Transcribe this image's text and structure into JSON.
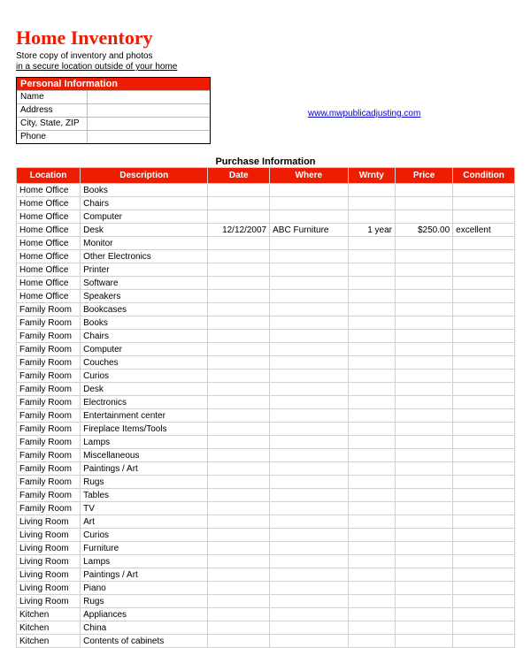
{
  "title": "Home Inventory",
  "subtitle_line1": "Store copy of inventory and photos",
  "subtitle_line2": "in a secure location outside of your home",
  "personal_info": {
    "header": "Personal Information",
    "fields": [
      {
        "label": "Name",
        "value": ""
      },
      {
        "label": "Address",
        "value": ""
      },
      {
        "label": "City, State, ZIP",
        "value": ""
      },
      {
        "label": "Phone",
        "value": ""
      }
    ]
  },
  "link_text": "www.mwpublicadjusting.com",
  "table_title": "Purchase Information",
  "columns": [
    "Location",
    "Description",
    "Date",
    "Where",
    "Wrnty",
    "Price",
    "Condition"
  ],
  "column_classes": [
    "col-location",
    "col-desc",
    "col-date",
    "col-where",
    "col-wrnty",
    "col-price",
    "col-cond"
  ],
  "rows": [
    [
      "Home Office",
      "Books",
      "",
      "",
      "",
      "",
      ""
    ],
    [
      "Home Office",
      "Chairs",
      "",
      "",
      "",
      "",
      ""
    ],
    [
      "Home Office",
      "Computer",
      "",
      "",
      "",
      "",
      ""
    ],
    [
      "Home Office",
      "Desk",
      "12/12/2007",
      "ABC Furniture",
      "1 year",
      "$250.00",
      "excellent"
    ],
    [
      "Home Office",
      "Monitor",
      "",
      "",
      "",
      "",
      ""
    ],
    [
      "Home Office",
      "Other Electronics",
      "",
      "",
      "",
      "",
      ""
    ],
    [
      "Home Office",
      "Printer",
      "",
      "",
      "",
      "",
      ""
    ],
    [
      "Home Office",
      "Software",
      "",
      "",
      "",
      "",
      ""
    ],
    [
      "Home Office",
      "Speakers",
      "",
      "",
      "",
      "",
      ""
    ],
    [
      "Family Room",
      "Bookcases",
      "",
      "",
      "",
      "",
      ""
    ],
    [
      "Family Room",
      "Books",
      "",
      "",
      "",
      "",
      ""
    ],
    [
      "Family Room",
      "Chairs",
      "",
      "",
      "",
      "",
      ""
    ],
    [
      "Family Room",
      "Computer",
      "",
      "",
      "",
      "",
      ""
    ],
    [
      "Family Room",
      "Couches",
      "",
      "",
      "",
      "",
      ""
    ],
    [
      "Family Room",
      "Curios",
      "",
      "",
      "",
      "",
      ""
    ],
    [
      "Family Room",
      "Desk",
      "",
      "",
      "",
      "",
      ""
    ],
    [
      "Family Room",
      "Electronics",
      "",
      "",
      "",
      "",
      ""
    ],
    [
      "Family Room",
      "Entertainment center",
      "",
      "",
      "",
      "",
      ""
    ],
    [
      "Family Room",
      "Fireplace Items/Tools",
      "",
      "",
      "",
      "",
      ""
    ],
    [
      "Family Room",
      "Lamps",
      "",
      "",
      "",
      "",
      ""
    ],
    [
      "Family Room",
      "Miscellaneous",
      "",
      "",
      "",
      "",
      ""
    ],
    [
      "Family Room",
      "Paintings / Art",
      "",
      "",
      "",
      "",
      ""
    ],
    [
      "Family Room",
      "Rugs",
      "",
      "",
      "",
      "",
      ""
    ],
    [
      "Family Room",
      "Tables",
      "",
      "",
      "",
      "",
      ""
    ],
    [
      "Family Room",
      "TV",
      "",
      "",
      "",
      "",
      ""
    ],
    [
      "Living Room",
      "Art",
      "",
      "",
      "",
      "",
      ""
    ],
    [
      "Living Room",
      "Curios",
      "",
      "",
      "",
      "",
      ""
    ],
    [
      "Living Room",
      "Furniture",
      "",
      "",
      "",
      "",
      ""
    ],
    [
      "Living Room",
      "Lamps",
      "",
      "",
      "",
      "",
      ""
    ],
    [
      "Living Room",
      "Paintings / Art",
      "",
      "",
      "",
      "",
      ""
    ],
    [
      "Living Room",
      "Piano",
      "",
      "",
      "",
      "",
      ""
    ],
    [
      "Living Room",
      "Rugs",
      "",
      "",
      "",
      "",
      ""
    ],
    [
      "Kitchen",
      "Appliances",
      "",
      "",
      "",
      "",
      ""
    ],
    [
      "Kitchen",
      "China",
      "",
      "",
      "",
      "",
      ""
    ],
    [
      "Kitchen",
      "Contents of cabinets",
      "",
      "",
      "",
      "",
      ""
    ]
  ],
  "colors": {
    "accent": "#ee1c00",
    "border": "#d0d0d0",
    "link": "#0000cc"
  }
}
